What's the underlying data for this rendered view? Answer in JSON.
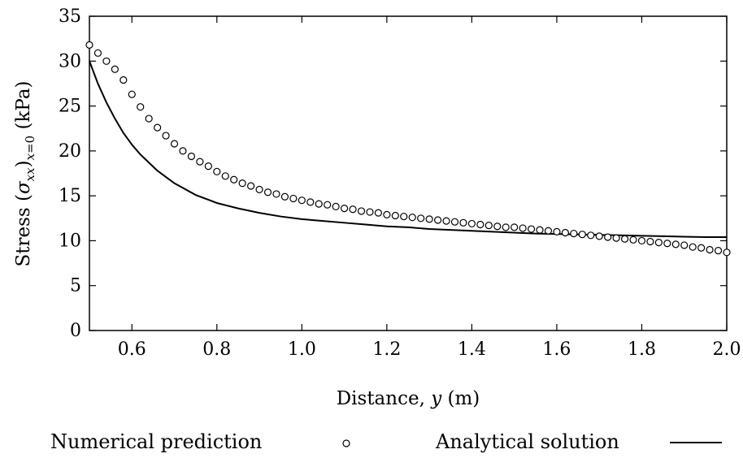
{
  "chart_data": {
    "type": "line",
    "title": "",
    "xlabel": "Distance, y (m)",
    "ylabel": "Stress (σxx)x=0 (kPa)",
    "xlim": [
      0.5,
      2.0
    ],
    "ylim": [
      0,
      35
    ],
    "xticks": [
      "0.6",
      "0.8",
      "1.0",
      "1.2",
      "1.4",
      "1.6",
      "1.8",
      "2.0"
    ],
    "yticks": [
      "0",
      "5",
      "10",
      "15",
      "20",
      "25",
      "30",
      "35"
    ],
    "grid": false,
    "legend_position": "bottom",
    "series": [
      {
        "name": "Numerical prediction",
        "style": "open-circle-markers",
        "x": [
          0.5,
          0.52,
          0.54,
          0.56,
          0.58,
          0.6,
          0.62,
          0.64,
          0.66,
          0.68,
          0.7,
          0.72,
          0.74,
          0.76,
          0.78,
          0.8,
          0.82,
          0.84,
          0.86,
          0.88,
          0.9,
          0.92,
          0.94,
          0.96,
          0.98,
          1.0,
          1.02,
          1.04,
          1.06,
          1.08,
          1.1,
          1.12,
          1.14,
          1.16,
          1.18,
          1.2,
          1.22,
          1.24,
          1.26,
          1.28,
          1.3,
          1.32,
          1.34,
          1.36,
          1.38,
          1.4,
          1.42,
          1.44,
          1.46,
          1.48,
          1.5,
          1.52,
          1.54,
          1.56,
          1.58,
          1.6,
          1.62,
          1.64,
          1.66,
          1.68,
          1.7,
          1.72,
          1.74,
          1.76,
          1.78,
          1.8,
          1.82,
          1.84,
          1.86,
          1.88,
          1.9,
          1.92,
          1.94,
          1.96,
          1.98,
          2.0
        ],
        "y": [
          31.8,
          30.9,
          30.0,
          29.1,
          27.9,
          26.3,
          24.9,
          23.6,
          22.6,
          21.7,
          20.8,
          20.0,
          19.4,
          18.8,
          18.3,
          17.7,
          17.2,
          16.8,
          16.4,
          16.1,
          15.7,
          15.4,
          15.2,
          14.9,
          14.7,
          14.5,
          14.3,
          14.1,
          14.0,
          13.8,
          13.6,
          13.5,
          13.3,
          13.2,
          13.1,
          12.9,
          12.8,
          12.7,
          12.6,
          12.5,
          12.4,
          12.3,
          12.2,
          12.1,
          12.0,
          11.9,
          11.8,
          11.7,
          11.6,
          11.5,
          11.5,
          11.4,
          11.3,
          11.2,
          11.1,
          11.0,
          10.9,
          10.8,
          10.7,
          10.6,
          10.5,
          10.4,
          10.3,
          10.2,
          10.1,
          10.0,
          9.9,
          9.8,
          9.7,
          9.6,
          9.5,
          9.3,
          9.2,
          9.0,
          8.9,
          8.7
        ]
      },
      {
        "name": "Analytical solution",
        "style": "solid-line",
        "x": [
          0.5,
          0.52,
          0.54,
          0.56,
          0.58,
          0.6,
          0.62,
          0.64,
          0.66,
          0.68,
          0.7,
          0.75,
          0.8,
          0.85,
          0.9,
          0.95,
          1.0,
          1.05,
          1.1,
          1.15,
          1.2,
          1.25,
          1.3,
          1.35,
          1.4,
          1.45,
          1.5,
          1.55,
          1.6,
          1.65,
          1.7,
          1.75,
          1.8,
          1.85,
          1.9,
          1.95,
          2.0
        ],
        "y": [
          30.0,
          27.5,
          25.4,
          23.6,
          22.0,
          20.7,
          19.6,
          18.7,
          17.8,
          17.1,
          16.4,
          15.1,
          14.2,
          13.6,
          13.1,
          12.7,
          12.4,
          12.2,
          12.0,
          11.8,
          11.6,
          11.5,
          11.3,
          11.2,
          11.1,
          11.0,
          10.9,
          10.8,
          10.75,
          10.7,
          10.65,
          10.6,
          10.55,
          10.5,
          10.45,
          10.4,
          10.4
        ]
      }
    ]
  },
  "legend": {
    "numerical_label": "Numerical prediction",
    "analytical_label": "Analytical solution"
  }
}
